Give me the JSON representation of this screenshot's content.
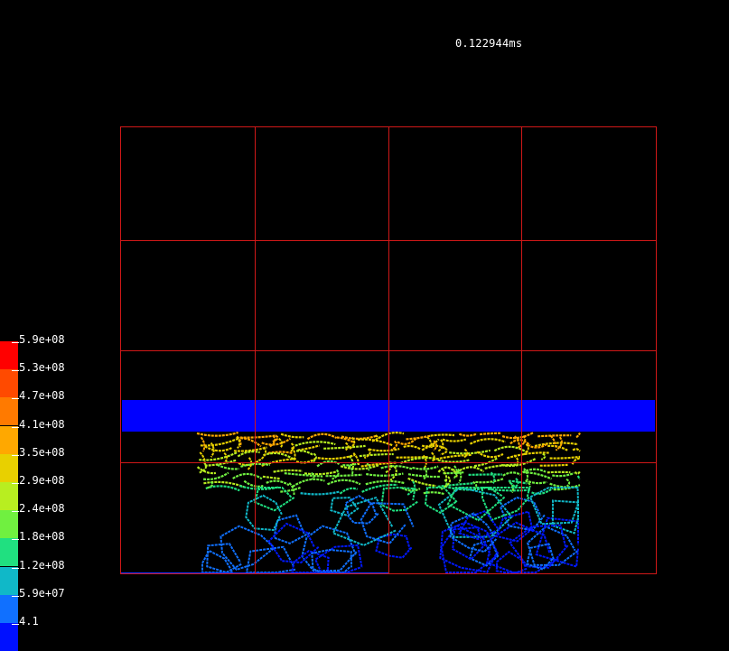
{
  "time_readout": "0.122944ms",
  "colors": {
    "background": "#000000",
    "grid": "#d01818",
    "block": "#0000ff",
    "text": "#ffffff"
  },
  "legend": {
    "entries": [
      {
        "label": "5.9e+08",
        "color": "#ff0000"
      },
      {
        "label": "5.3e+08",
        "color": "#ff4a00"
      },
      {
        "label": "4.7e+08",
        "color": "#ff7a00"
      },
      {
        "label": "4.1e+08",
        "color": "#ffa800"
      },
      {
        "label": "3.5e+08",
        "color": "#e8d000"
      },
      {
        "label": "2.9e+08",
        "color": "#b8ee20"
      },
      {
        "label": "2.4e+08",
        "color": "#70f040"
      },
      {
        "label": "1.8e+08",
        "color": "#20e080"
      },
      {
        "label": "1.2e+08",
        "color": "#10b8c8"
      },
      {
        "label": "5.9e+07",
        "color": "#1070ff"
      },
      {
        "label": "4.1",
        "color": "#0010ff"
      }
    ]
  }
}
